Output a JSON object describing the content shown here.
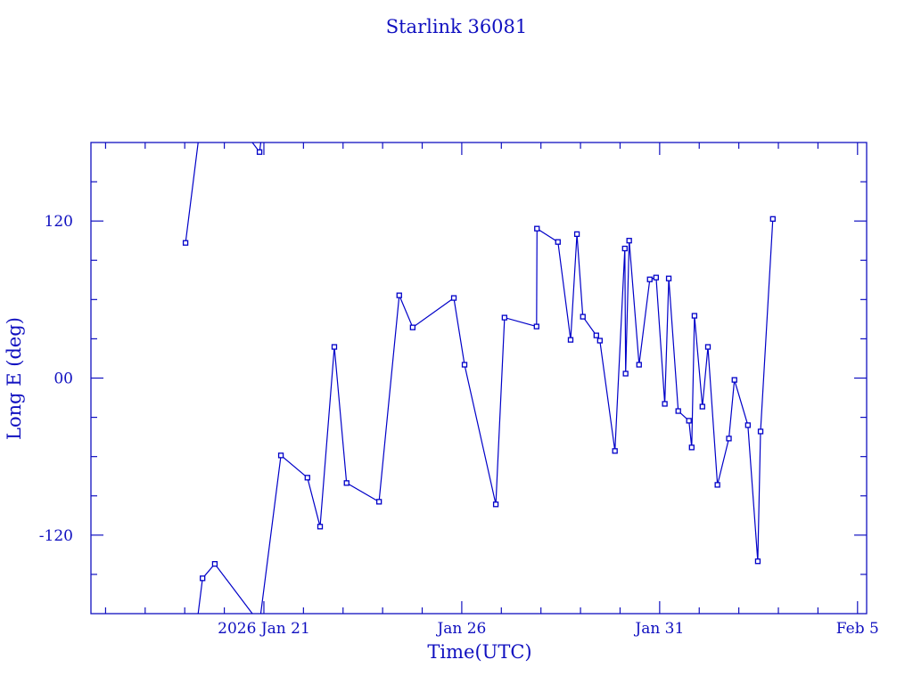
{
  "chart_data": {
    "type": "line",
    "title": "Starlink 36081",
    "xlabel": "Time(UTC)",
    "ylabel": "Long E (deg)",
    "x_units": "day of January 2026 (UTC)",
    "xlim": [
      16.63,
      36.23
    ],
    "ylim": [
      -180,
      180
    ],
    "x_ticks": [
      {
        "value": 21,
        "label": "2026 Jan 21"
      },
      {
        "value": 26,
        "label": "Jan 26"
      },
      {
        "value": 31,
        "label": "Jan 31"
      },
      {
        "value": 36,
        "label": "Feb  5"
      }
    ],
    "y_ticks": [
      {
        "value": 120,
        "label": "120"
      },
      {
        "value": 0,
        "label": "00"
      },
      {
        "value": -120,
        "label": "-120"
      }
    ],
    "y_minor_step": 30,
    "x_minor_step": 1,
    "grid": false,
    "color": "#0000c8",
    "series": [
      {
        "name": "Starlink 36081",
        "x": [
          19.02,
          19.45,
          19.76,
          20.89,
          21.43,
          22.1,
          22.42,
          22.78,
          23.09,
          23.91,
          24.42,
          24.76,
          25.8,
          26.07,
          26.86,
          27.08,
          27.89,
          27.9,
          28.43,
          28.75,
          28.91,
          29.06,
          29.4,
          29.49,
          29.87,
          30.12,
          30.14,
          30.23,
          30.48,
          30.75,
          30.91,
          31.13,
          31.23,
          31.47,
          31.74,
          31.81,
          31.88,
          32.08,
          32.22,
          32.46,
          32.75,
          32.89,
          33.23,
          33.48,
          33.55,
          33.86
        ],
        "y": [
          103.3,
          -153,
          -142,
          172.7,
          -59.1,
          -76.1,
          -113.5,
          23.8,
          -80.2,
          -94.5,
          63.2,
          38.7,
          61.2,
          10.2,
          -96.5,
          46.2,
          39.4,
          114.2,
          104,
          29.2,
          110,
          46.9,
          32.6,
          28.6,
          -55.7,
          99,
          3.4,
          105,
          10.2,
          75.4,
          76.8,
          -19.7,
          76.1,
          -25.2,
          -32.6,
          -53,
          47.6,
          -21.8,
          23.8,
          -81.6,
          -46.2,
          -1.4,
          -36,
          -140,
          -40.8,
          121.6
        ]
      }
    ]
  }
}
